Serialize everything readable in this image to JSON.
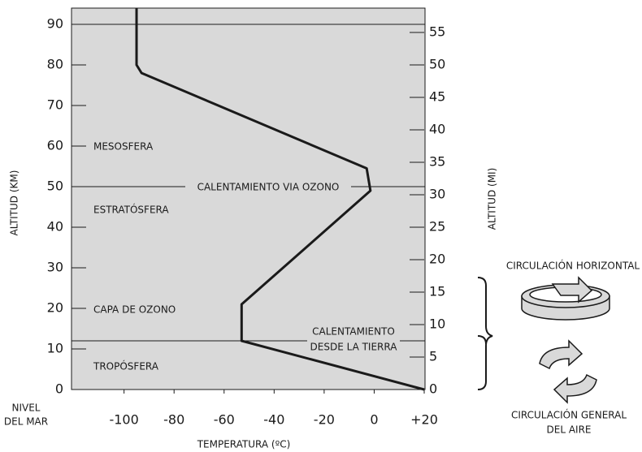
{
  "chart_data": {
    "type": "line",
    "xlabel": "TEMPERATURA (ºC)",
    "ylabel": "ALTITUD (KM)",
    "y2label": "ALTITUD (MI)",
    "xlim": [
      -121,
      20
    ],
    "xticks": [
      -100,
      -80,
      -60,
      -40,
      -20,
      0,
      {
        "value": 20,
        "label": "+20"
      }
    ],
    "ylim": [
      0,
      94
    ],
    "yticks": [
      0,
      10,
      20,
      30,
      40,
      50,
      60,
      70,
      80,
      90
    ],
    "y2lim": [
      0,
      58.75
    ],
    "y2ticks": [
      0,
      5,
      10,
      15,
      20,
      25,
      30,
      35,
      40,
      45,
      50,
      55
    ],
    "reference_lines": [
      90,
      50,
      12
    ],
    "series": [
      {
        "color": "#1a1a1a",
        "x": [
          -95,
          -95,
          -93,
          -3,
          -1.5,
          -53,
          -53,
          20
        ],
        "values": [
          94,
          80,
          78,
          54.5,
          49,
          21,
          12,
          0
        ]
      }
    ],
    "annotations": {
      "mesosfera": "MESOSFERA",
      "ozone_heating": "CALENTAMIENTO  VIA OZONO",
      "estratosfera": "ESTRATÓSFERA",
      "ozone_layer": "CAPA DE OZONO",
      "earth_heating": [
        "CALENTAMIENTO",
        "DESDE LA TIERRA"
      ],
      "troposfera": "TROPÓSFERA",
      "sea_level": [
        "NIVEL",
        "DEL MAR"
      ],
      "horizontal_circulation": "CIRCULACIÓN HORIZONTAL",
      "general_circulation": [
        "CIRCULACIÓN GENERAL",
        "DEL AIRE"
      ]
    }
  }
}
